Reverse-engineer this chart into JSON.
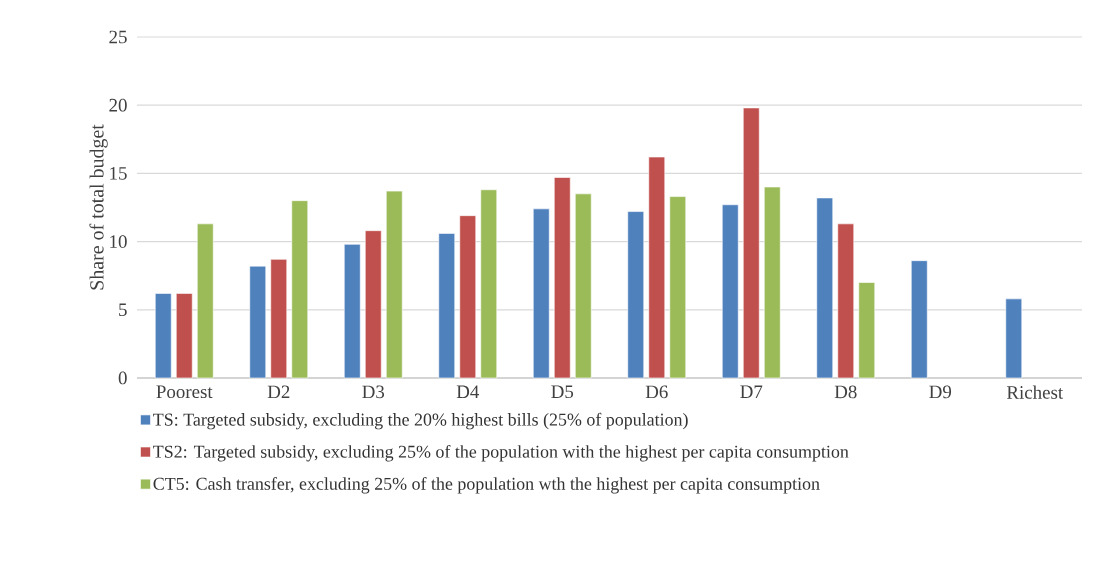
{
  "chart_data": {
    "type": "bar",
    "ylabel": "Share of total budget",
    "categories": [
      "Poorest",
      "D2",
      "D3",
      "D4",
      "D5",
      "D6",
      "D7",
      "D8",
      "D9",
      "Richest"
    ],
    "series": [
      {
        "name": "TS: Targeted subsidy, excluding the 20% highest bills (25% of population)",
        "color": "#4f81bd",
        "values": [
          6.2,
          8.2,
          9.8,
          10.6,
          12.4,
          12.2,
          12.7,
          13.2,
          8.6,
          5.8
        ]
      },
      {
        "name": "TS2: Targeted subsidy, excluding 25% of the population with the highest per capita consumption",
        "color": "#c0504d",
        "values": [
          6.2,
          8.7,
          10.8,
          11.9,
          14.7,
          16.2,
          19.8,
          11.3,
          null,
          null
        ]
      },
      {
        "name": "CT5: Cash transfer, excluding 25% of the population wth the highest per capita consumption",
        "color": "#9bbb59",
        "values": [
          11.3,
          13.0,
          13.7,
          13.8,
          13.5,
          13.3,
          14.0,
          7.0,
          null,
          null
        ]
      }
    ],
    "ylim": [
      0,
      25
    ],
    "yticks": [
      0,
      5,
      10,
      15,
      20,
      25
    ],
    "grid": "y",
    "legend": "bottom"
  }
}
